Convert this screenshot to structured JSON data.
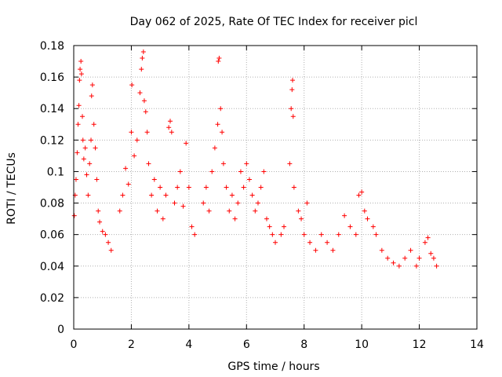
{
  "chart_data": {
    "type": "scatter",
    "title": "Day 062 of 2025, Rate Of TEC Index for receiver picl",
    "xlabel": "GPS time / hours",
    "ylabel": "ROTI / TECUs",
    "xlim": [
      0,
      14
    ],
    "ylim": [
      0,
      0.18
    ],
    "x_ticks": [
      0,
      2,
      4,
      6,
      8,
      10,
      12,
      14
    ],
    "x_tick_labels": [
      "0",
      "2",
      "4",
      "6",
      "8",
      "10",
      "12",
      "14"
    ],
    "y_ticks": [
      0,
      0.02,
      0.04,
      0.06,
      0.08,
      0.1,
      0.12,
      0.14,
      0.16,
      0.18
    ],
    "y_tick_labels": [
      "0",
      "0.02",
      "0.04",
      "0.06",
      "0.08",
      "0.1",
      "0.12",
      "0.14",
      "0.16",
      "0.18"
    ],
    "grid": true,
    "marker": "+",
    "color": "#ff0000",
    "series": [
      {
        "name": "ROTI",
        "x_range": [
          0.0,
          12.65
        ],
        "points": [
          [
            0.02,
            0.072
          ],
          [
            0.05,
            0.085
          ],
          [
            0.08,
            0.095
          ],
          [
            0.12,
            0.112
          ],
          [
            0.15,
            0.13
          ],
          [
            0.18,
            0.142
          ],
          [
            0.2,
            0.158
          ],
          [
            0.22,
            0.165
          ],
          [
            0.25,
            0.17
          ],
          [
            0.27,
            0.162
          ],
          [
            0.3,
            0.135
          ],
          [
            0.32,
            0.12
          ],
          [
            0.35,
            0.108
          ],
          [
            0.4,
            0.115
          ],
          [
            0.45,
            0.098
          ],
          [
            0.5,
            0.085
          ],
          [
            0.55,
            0.105
          ],
          [
            0.6,
            0.12
          ],
          [
            0.62,
            0.148
          ],
          [
            0.65,
            0.155
          ],
          [
            0.7,
            0.13
          ],
          [
            0.75,
            0.115
          ],
          [
            0.8,
            0.095
          ],
          [
            0.85,
            0.075
          ],
          [
            0.9,
            0.068
          ],
          [
            1.0,
            0.062
          ],
          [
            1.1,
            0.06
          ],
          [
            1.2,
            0.055
          ],
          [
            1.3,
            0.05
          ],
          [
            1.6,
            0.075
          ],
          [
            1.7,
            0.085
          ],
          [
            1.8,
            0.102
          ],
          [
            1.9,
            0.092
          ],
          [
            2.0,
            0.125
          ],
          [
            2.02,
            0.155
          ],
          [
            2.1,
            0.11
          ],
          [
            2.2,
            0.12
          ],
          [
            2.3,
            0.15
          ],
          [
            2.35,
            0.165
          ],
          [
            2.38,
            0.172
          ],
          [
            2.42,
            0.176
          ],
          [
            2.45,
            0.145
          ],
          [
            2.5,
            0.138
          ],
          [
            2.55,
            0.125
          ],
          [
            2.6,
            0.105
          ],
          [
            2.7,
            0.085
          ],
          [
            2.8,
            0.095
          ],
          [
            2.9,
            0.075
          ],
          [
            3.0,
            0.09
          ],
          [
            3.1,
            0.07
          ],
          [
            3.2,
            0.085
          ],
          [
            3.3,
            0.128
          ],
          [
            3.35,
            0.132
          ],
          [
            3.4,
            0.125
          ],
          [
            3.5,
            0.08
          ],
          [
            3.6,
            0.09
          ],
          [
            3.7,
            0.1
          ],
          [
            3.8,
            0.078
          ],
          [
            3.9,
            0.118
          ],
          [
            4.0,
            0.09
          ],
          [
            4.1,
            0.065
          ],
          [
            4.2,
            0.06
          ],
          [
            4.5,
            0.08
          ],
          [
            4.6,
            0.09
          ],
          [
            4.7,
            0.075
          ],
          [
            4.8,
            0.1
          ],
          [
            4.9,
            0.115
          ],
          [
            5.0,
            0.13
          ],
          [
            5.02,
            0.17
          ],
          [
            5.05,
            0.172
          ],
          [
            5.1,
            0.14
          ],
          [
            5.15,
            0.125
          ],
          [
            5.2,
            0.105
          ],
          [
            5.3,
            0.09
          ],
          [
            5.4,
            0.075
          ],
          [
            5.5,
            0.085
          ],
          [
            5.6,
            0.07
          ],
          [
            5.7,
            0.08
          ],
          [
            5.8,
            0.1
          ],
          [
            5.9,
            0.09
          ],
          [
            6.0,
            0.105
          ],
          [
            6.1,
            0.095
          ],
          [
            6.2,
            0.085
          ],
          [
            6.3,
            0.075
          ],
          [
            6.4,
            0.08
          ],
          [
            6.5,
            0.09
          ],
          [
            6.6,
            0.1
          ],
          [
            6.7,
            0.07
          ],
          [
            6.8,
            0.065
          ],
          [
            6.9,
            0.06
          ],
          [
            7.0,
            0.055
          ],
          [
            7.2,
            0.06
          ],
          [
            7.3,
            0.065
          ],
          [
            7.5,
            0.105
          ],
          [
            7.55,
            0.14
          ],
          [
            7.58,
            0.152
          ],
          [
            7.6,
            0.158
          ],
          [
            7.62,
            0.135
          ],
          [
            7.65,
            0.09
          ],
          [
            7.8,
            0.075
          ],
          [
            7.9,
            0.07
          ],
          [
            8.0,
            0.06
          ],
          [
            8.1,
            0.08
          ],
          [
            8.2,
            0.055
          ],
          [
            8.4,
            0.05
          ],
          [
            8.6,
            0.06
          ],
          [
            8.8,
            0.055
          ],
          [
            9.0,
            0.05
          ],
          [
            9.2,
            0.06
          ],
          [
            9.4,
            0.072
          ],
          [
            9.6,
            0.065
          ],
          [
            9.8,
            0.06
          ],
          [
            9.9,
            0.085
          ],
          [
            10.0,
            0.087
          ],
          [
            10.1,
            0.075
          ],
          [
            10.2,
            0.07
          ],
          [
            10.4,
            0.065
          ],
          [
            10.5,
            0.06
          ],
          [
            10.7,
            0.05
          ],
          [
            10.9,
            0.045
          ],
          [
            11.1,
            0.042
          ],
          [
            11.3,
            0.04
          ],
          [
            11.5,
            0.045
          ],
          [
            11.7,
            0.05
          ],
          [
            11.9,
            0.04
          ],
          [
            12.0,
            0.045
          ],
          [
            12.2,
            0.055
          ],
          [
            12.3,
            0.058
          ],
          [
            12.4,
            0.048
          ],
          [
            12.5,
            0.045
          ],
          [
            12.6,
            0.04
          ]
        ]
      }
    ]
  }
}
